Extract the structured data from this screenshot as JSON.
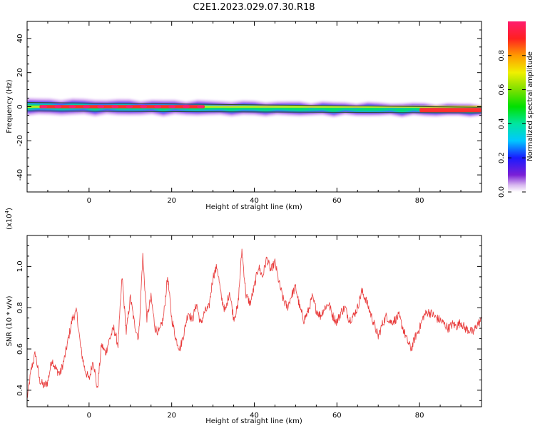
{
  "title": "C2E1.2023.029.07.30.R18",
  "colors": {
    "line": "#e83a3a",
    "axis": "#000000",
    "background": "#ffffff"
  },
  "chart_data": [
    {
      "type": "heatmap",
      "title": "C2E1.2023.029.07.30.R18",
      "xlabel": "Height of straight line (km)",
      "ylabel": "Frequency (Hz)",
      "xlim": [
        -15,
        95
      ],
      "ylim": [
        -50,
        50
      ],
      "x_ticks": [
        "0",
        "20",
        "40",
        "60",
        "80"
      ],
      "y_ticks": [
        "-40",
        "-20",
        "0",
        "20",
        "40"
      ],
      "colorbar": {
        "label": "Normalized spectral amplitude",
        "range": [
          0,
          1
        ],
        "ticks": [
          "0.0",
          "0.2",
          "0.4",
          "0.6",
          "0.8"
        ]
      },
      "ridge": {
        "frequency_hz": 0,
        "x_start_km": -15,
        "x_end_km": 95,
        "peak_amplitude_segment_km": [
          -12,
          28
        ],
        "end_frequency_hz": -2
      },
      "grid": false
    },
    {
      "type": "line",
      "xlabel": "Height of straight line (km)",
      "ylabel": "SNR (10 * v/v)",
      "yscale_label": "(x10",
      "yscale_exp": "4",
      "yscale_close": ")",
      "xlim": [
        -15,
        95
      ],
      "ylim": [
        0.32,
        1.15
      ],
      "x_ticks": [
        "0",
        "20",
        "40",
        "60",
        "80"
      ],
      "y_ticks": [
        "0.4",
        "0.6",
        "0.8",
        "1.0"
      ],
      "series": [
        {
          "x": [
            -15,
            -14,
            -13,
            -12,
            -11,
            -10,
            -9,
            -8,
            -7,
            -6,
            -5,
            -4,
            -3,
            -2,
            -1,
            0,
            1,
            2,
            3,
            4,
            5,
            6,
            7,
            8,
            9,
            10,
            11,
            12,
            13,
            14,
            15,
            16,
            17,
            18,
            19,
            20,
            21,
            22,
            23,
            24,
            25,
            26,
            27,
            28,
            29,
            30,
            31,
            32,
            33,
            34,
            35,
            36,
            37,
            38,
            39,
            40,
            41,
            42,
            43,
            44,
            45,
            46,
            47,
            48,
            49,
            50,
            51,
            52,
            53,
            54,
            55,
            56,
            57,
            58,
            59,
            60,
            61,
            62,
            63,
            64,
            65,
            66,
            67,
            68,
            69,
            70,
            71,
            72,
            73,
            74,
            75,
            76,
            77,
            78,
            79,
            80,
            81,
            82,
            83,
            84,
            85,
            86,
            87,
            88,
            89,
            90,
            91,
            92,
            93,
            94,
            95
          ],
          "y": [
            0.36,
            0.5,
            0.58,
            0.45,
            0.42,
            0.44,
            0.55,
            0.5,
            0.48,
            0.55,
            0.65,
            0.75,
            0.78,
            0.6,
            0.5,
            0.45,
            0.55,
            0.4,
            0.62,
            0.58,
            0.65,
            0.7,
            0.62,
            0.95,
            0.68,
            0.85,
            0.72,
            0.65,
            1.05,
            0.75,
            0.85,
            0.7,
            0.68,
            0.75,
            0.95,
            0.75,
            0.65,
            0.6,
            0.68,
            0.78,
            0.74,
            0.82,
            0.72,
            0.78,
            0.8,
            0.95,
            1.0,
            0.85,
            0.78,
            0.88,
            0.75,
            0.8,
            1.08,
            0.86,
            0.82,
            0.9,
            1.0,
            0.95,
            1.04,
            0.98,
            1.02,
            0.92,
            0.84,
            0.8,
            0.86,
            0.9,
            0.8,
            0.74,
            0.78,
            0.85,
            0.79,
            0.76,
            0.8,
            0.82,
            0.76,
            0.73,
            0.78,
            0.8,
            0.74,
            0.76,
            0.8,
            0.88,
            0.84,
            0.78,
            0.72,
            0.66,
            0.72,
            0.76,
            0.73,
            0.74,
            0.76,
            0.7,
            0.64,
            0.6,
            0.66,
            0.7,
            0.76,
            0.78,
            0.77,
            0.75,
            0.74,
            0.72,
            0.7,
            0.72,
            0.71,
            0.73,
            0.7,
            0.69,
            0.68,
            0.72,
            0.74
          ]
        }
      ],
      "grid": false
    }
  ]
}
